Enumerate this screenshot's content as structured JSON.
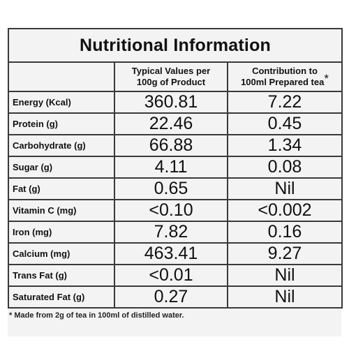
{
  "table": {
    "title": "Nutritional Information",
    "headers": {
      "blank": "",
      "typical_line1": "Typical Values per",
      "typical_line2": "100g of Product",
      "contribution_line1": "Contribution to",
      "contribution_line2": "100ml Prepared tea",
      "asterisk": "*"
    },
    "rows": [
      {
        "label": "Energy (Kcal)",
        "typical": "360.81",
        "contribution": "7.22"
      },
      {
        "label": "Protein (g)",
        "typical": "22.46",
        "contribution": "0.45"
      },
      {
        "label": "Carbohydrate (g)",
        "typical": "66.88",
        "contribution": "1.34"
      },
      {
        "label": "Sugar (g)",
        "typical": "4.11",
        "contribution": "0.08"
      },
      {
        "label": "Fat (g)",
        "typical": "0.65",
        "contribution": "Nil"
      },
      {
        "label": "Vitamin C (mg)",
        "typical": "<0.10",
        "contribution": "<0.002"
      },
      {
        "label": "Iron (mg)",
        "typical": "7.82",
        "contribution": "0.16"
      },
      {
        "label": "Calcium (mg)",
        "typical": "463.41",
        "contribution": "9.27"
      },
      {
        "label": "Trans Fat (g)",
        "typical": "<0.01",
        "contribution": "Nil"
      },
      {
        "label": "Saturated Fat (g)",
        "typical": "0.27",
        "contribution": "Nil"
      }
    ]
  },
  "footnote": "* Made from 2g of tea in 100ml of distilled water."
}
